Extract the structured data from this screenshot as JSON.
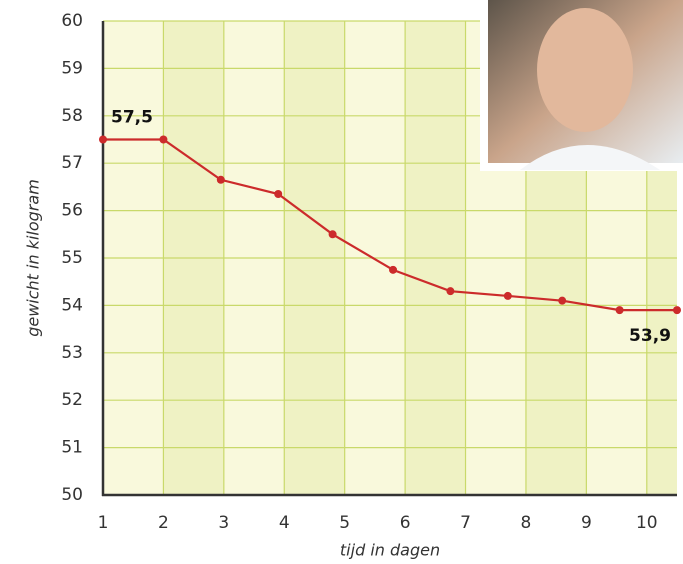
{
  "chart_data": {
    "type": "line",
    "x_label": "tijd in dagen",
    "y_label": "gewicht in kilogram",
    "xlim": [
      1,
      10.5
    ],
    "xticks": [
      1,
      2,
      3,
      4,
      5,
      6,
      7,
      8,
      9,
      10
    ],
    "ylim": [
      50,
      60
    ],
    "yticks": [
      50,
      51,
      52,
      53,
      54,
      55,
      56,
      57,
      58,
      59,
      60
    ],
    "grid": true,
    "series": [
      {
        "color": "#cc2b2b",
        "x": [
          1,
          2,
          2.95,
          3.9,
          4.8,
          5.8,
          6.75,
          7.7,
          8.6,
          9.55,
          10.5
        ],
        "values": [
          57.5,
          57.5,
          56.65,
          56.35,
          55.5,
          54.75,
          54.3,
          54.2,
          54.1,
          53.9,
          53.9
        ],
        "value_labels": [
          "57,5",
          null,
          null,
          null,
          null,
          null,
          null,
          null,
          null,
          null,
          "53,9"
        ]
      }
    ]
  }
}
